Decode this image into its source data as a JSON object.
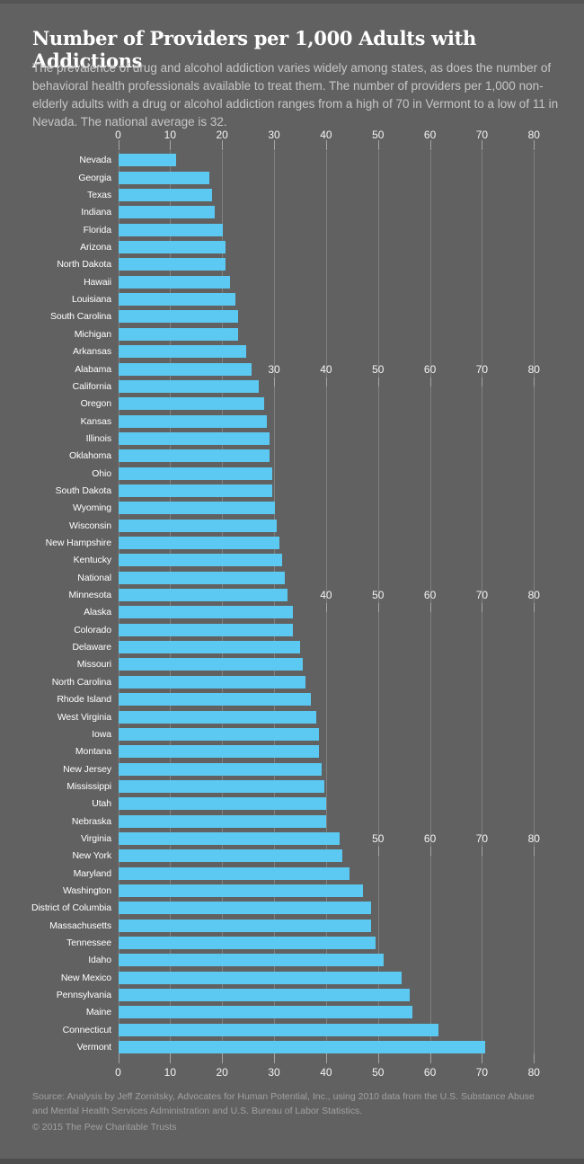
{
  "header": {
    "title": "Number of Providers per 1,000 Adults with Addictions",
    "subtitle": "The prevalence of drug and alcohol addiction varies widely among states, as does the number of behavioral health professionals available to treat them. The number of providers per 1,000 non-elderly adults with a drug or alcohol addiction ranges from a high of 70 in Vermont to a low of 11 in Nevada. The national average is 32."
  },
  "chart_data": {
    "type": "bar",
    "orientation": "horizontal",
    "title": "Number of Providers per 1,000 Adults with Addictions",
    "xlabel": "",
    "ylabel": "",
    "xlim": [
      0,
      80
    ],
    "x_ticks": [
      0,
      10,
      20,
      30,
      40,
      50,
      60,
      70,
      80
    ],
    "grid": true,
    "bar_color": "#5BC9F1",
    "categories": [
      "Nevada",
      "Georgia",
      "Texas",
      "Indiana",
      "Florida",
      "Arizona",
      "North Dakota",
      "Hawaii",
      "Louisiana",
      "South Carolina",
      "Michigan",
      "Arkansas",
      "Alabama",
      "California",
      "Oregon",
      "Kansas",
      "Illinois",
      "Oklahoma",
      "Ohio",
      "South Dakota",
      "Wyoming",
      "Wisconsin",
      "New Hampshire",
      "Kentucky",
      "National",
      "Minnesota",
      "Alaska",
      "Colorado",
      "Delaware",
      "Missouri",
      "North Carolina",
      "Rhode Island",
      "West Virginia",
      "Iowa",
      "Montana",
      "New Jersey",
      "Mississippi",
      "Utah",
      "Nebraska",
      "Virginia",
      "New York",
      "Maryland",
      "Washington",
      "District of Columbia",
      "Massachusetts",
      "Tennessee",
      "Idaho",
      "New Mexico",
      "Pennsylvania",
      "Maine",
      "Connecticut",
      "Vermont"
    ],
    "values": [
      11,
      17.5,
      18,
      18.5,
      20,
      20.5,
      20.5,
      21.5,
      22.5,
      23,
      23,
      24.5,
      25.5,
      27,
      28,
      28.5,
      29,
      29,
      29.5,
      29.5,
      30,
      30.5,
      31,
      31.5,
      32,
      32.5,
      33.5,
      33.5,
      35,
      35.5,
      36,
      37,
      38,
      38.5,
      38.5,
      39,
      39.5,
      40,
      40,
      42.5,
      43,
      44.5,
      47,
      48.5,
      48.5,
      49.5,
      51,
      54.5,
      56,
      56.5,
      61.5,
      70.5
    ],
    "repeated_axis_label_rows": [
      {
        "row_index": 12,
        "labels": [
          30,
          40,
          50,
          60,
          70,
          80
        ]
      },
      {
        "row_index": 25,
        "labels": [
          40,
          50,
          60,
          70,
          80
        ]
      },
      {
        "row_index": 39,
        "labels": [
          50,
          60,
          70,
          80
        ]
      }
    ],
    "legend": null
  },
  "footer": {
    "source_lines": [
      "Source: Analysis by Jeff Zornitsky, Advocates for Human Potential, Inc., using 2010 data from the U.S. Substance Abuse",
      "and Mental Health Services Administration and U.S. Bureau of Labor Statistics."
    ],
    "copyright": "© 2015 The Pew Charitable Trusts"
  },
  "colors": {
    "background": "#616161",
    "bar": "#5BC9F1",
    "title_text": "#ffffff",
    "subtitle_text": "#c7c7c7",
    "footer_text": "#a2a2a2"
  }
}
